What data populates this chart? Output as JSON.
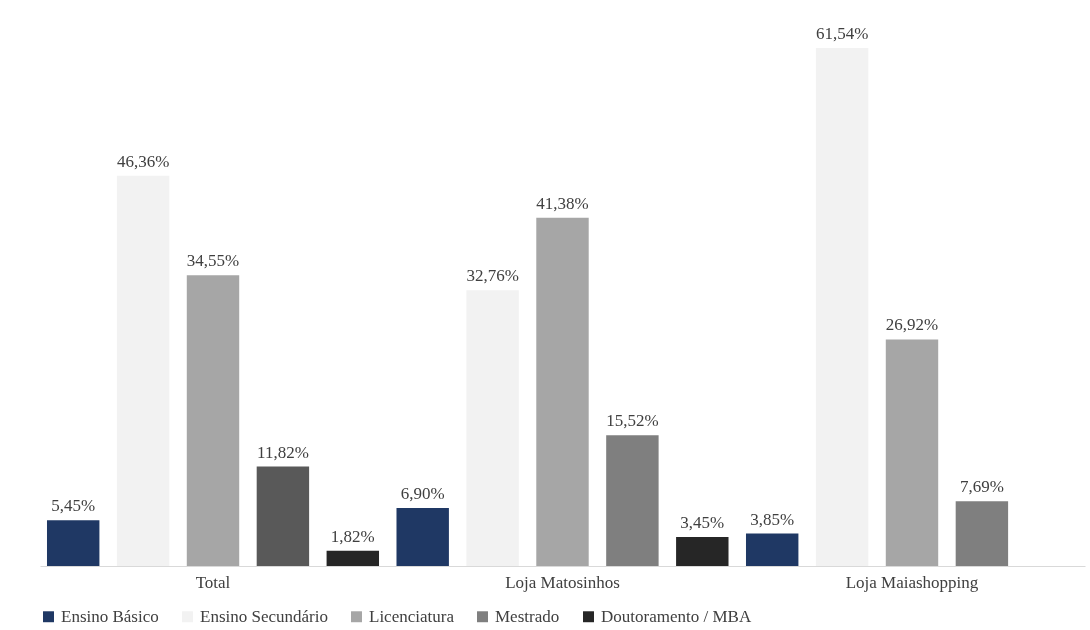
{
  "chart_data": {
    "type": "bar",
    "categories": [
      "Total",
      "Loja Matosinhos",
      "Loja Maiashopping"
    ],
    "series": [
      {
        "name": "Ensino Básico",
        "color": "#1f3864",
        "values": [
          5.45,
          6.9,
          3.85
        ],
        "value_labels": [
          "5,45%",
          "6,90%",
          "3,85%"
        ]
      },
      {
        "name": "Ensino Secundário",
        "color": "#f2f2f2",
        "values": [
          46.36,
          32.76,
          61.54
        ],
        "value_labels": [
          "46,36%",
          "32,76%",
          "61,54%"
        ]
      },
      {
        "name": "Licenciatura",
        "color": "#a6a6a6",
        "values": [
          34.55,
          41.38,
          26.92
        ],
        "value_labels": [
          "34,55%",
          "41,38%",
          "26,92%"
        ]
      },
      {
        "name": "Mestrado",
        "color": "#7f7f7f",
        "colors": [
          "#595959",
          "#7f7f7f",
          "#7f7f7f"
        ],
        "values": [
          11.82,
          15.52,
          7.69
        ],
        "value_labels": [
          "11,82%",
          "15,52%",
          "7,69%"
        ]
      },
      {
        "name": "Doutoramento / MBA",
        "color": "#262626",
        "values": [
          1.82,
          3.45,
          null
        ],
        "value_labels": [
          "1,82%",
          "3,45%",
          null
        ]
      }
    ],
    "legend": "bottom",
    "grid": false
  }
}
